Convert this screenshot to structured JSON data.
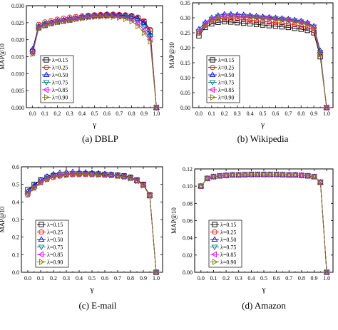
{
  "chart_data": [
    {
      "type": "line",
      "caption": "(a)  DBLP",
      "xlabel": "γ",
      "ylabel": "MAP@10",
      "xlim": [
        -0.05,
        1.05
      ],
      "ylim": [
        0.0,
        0.03
      ],
      "xticks": [
        "0.0",
        "0.1",
        "0.2",
        "0.3",
        "0.4",
        "0.5",
        "0.6",
        "0.7",
        "0.8",
        "0.9",
        "1.0"
      ],
      "yticks": [
        "0.000",
        "0.005",
        "0.010",
        "0.015",
        "0.020",
        "0.025",
        "0.030"
      ],
      "legend_position": "lower-left",
      "x": [
        0.0,
        0.05,
        0.1,
        0.15,
        0.2,
        0.25,
        0.3,
        0.35,
        0.4,
        0.45,
        0.5,
        0.55,
        0.6,
        0.65,
        0.7,
        0.75,
        0.8,
        0.85,
        0.9,
        0.95,
        1.0
      ],
      "series": [
        {
          "name": "λ=0.15",
          "marker": "square",
          "color": "#000000",
          "values": [
            0.0165,
            0.0235,
            0.0242,
            0.0248,
            0.0252,
            0.0255,
            0.0258,
            0.0262,
            0.0265,
            0.0268,
            0.027,
            0.0271,
            0.0272,
            0.0272,
            0.0271,
            0.027,
            0.0268,
            0.0263,
            0.0252,
            0.0225,
            0.0
          ]
        },
        {
          "name": "λ=0.25",
          "marker": "circle",
          "color": "#ff0000",
          "values": [
            0.0168,
            0.0245,
            0.0252,
            0.0256,
            0.026,
            0.0263,
            0.0266,
            0.0268,
            0.027,
            0.0272,
            0.0273,
            0.0274,
            0.0275,
            0.0275,
            0.0274,
            0.0273,
            0.0271,
            0.0266,
            0.0256,
            0.023,
            0.0
          ]
        },
        {
          "name": "λ=0.50",
          "marker": "triangle-up",
          "color": "#0000ff",
          "values": [
            0.0172,
            0.024,
            0.0247,
            0.0251,
            0.0255,
            0.0258,
            0.0261,
            0.0264,
            0.0267,
            0.0269,
            0.0271,
            0.0272,
            0.0273,
            0.0273,
            0.0272,
            0.0271,
            0.0269,
            0.0262,
            0.025,
            0.0215,
            0.0
          ]
        },
        {
          "name": "λ=0.75",
          "marker": "triangle-down",
          "color": "#008080",
          "values": [
            0.016,
            0.0238,
            0.0245,
            0.025,
            0.0254,
            0.0257,
            0.026,
            0.0263,
            0.0266,
            0.0268,
            0.027,
            0.0271,
            0.0271,
            0.0271,
            0.027,
            0.0268,
            0.0264,
            0.0255,
            0.0238,
            0.021,
            0.0
          ]
        },
        {
          "name": "λ=0.85",
          "marker": "triangle-left",
          "color": "#ff00ff",
          "values": [
            0.016,
            0.0236,
            0.0243,
            0.0249,
            0.0253,
            0.0256,
            0.0259,
            0.0262,
            0.0265,
            0.0267,
            0.0269,
            0.027,
            0.027,
            0.027,
            0.0268,
            0.0265,
            0.026,
            0.0248,
            0.0228,
            0.02,
            0.0
          ]
        },
        {
          "name": "λ=0.90",
          "marker": "triangle-right",
          "color": "#808000",
          "values": [
            0.0158,
            0.0234,
            0.0241,
            0.0247,
            0.0251,
            0.0254,
            0.0257,
            0.026,
            0.0263,
            0.0265,
            0.0267,
            0.0268,
            0.0268,
            0.0267,
            0.0265,
            0.0261,
            0.0254,
            0.024,
            0.022,
            0.0195,
            0.0
          ]
        }
      ]
    },
    {
      "type": "line",
      "caption": "(b)  Wikipedia",
      "xlabel": "γ",
      "ylabel": "MAP@10",
      "xlim": [
        -0.05,
        1.05
      ],
      "ylim": [
        0.0,
        0.35
      ],
      "xticks": [
        "0.0",
        "0.1",
        "0.2",
        "0.3",
        "0.4",
        "0.5",
        "0.6",
        "0.7",
        "0.8",
        "0.9",
        "1.0"
      ],
      "yticks": [
        "0.00",
        "0.05",
        "0.10",
        "0.15",
        "0.20",
        "0.25",
        "0.30",
        "0.35"
      ],
      "legend_position": "lower-left",
      "x": [
        0.0,
        0.05,
        0.1,
        0.15,
        0.2,
        0.25,
        0.3,
        0.35,
        0.4,
        0.45,
        0.5,
        0.55,
        0.6,
        0.65,
        0.7,
        0.75,
        0.8,
        0.85,
        0.9,
        0.95,
        1.0
      ],
      "series": [
        {
          "name": "λ=0.15",
          "marker": "square",
          "color": "#000000",
          "values": [
            0.24,
            0.268,
            0.28,
            0.285,
            0.287,
            0.286,
            0.284,
            0.282,
            0.28,
            0.278,
            0.276,
            0.274,
            0.272,
            0.27,
            0.268,
            0.265,
            0.262,
            0.258,
            0.25,
            0.17,
            0.0
          ]
        },
        {
          "name": "λ=0.25",
          "marker": "circle",
          "color": "#ff0000",
          "values": [
            0.25,
            0.275,
            0.29,
            0.296,
            0.298,
            0.297,
            0.296,
            0.294,
            0.292,
            0.29,
            0.288,
            0.286,
            0.284,
            0.282,
            0.28,
            0.277,
            0.273,
            0.268,
            0.258,
            0.18,
            0.0
          ]
        },
        {
          "name": "λ=0.50",
          "marker": "triangle-up",
          "color": "#0000ff",
          "values": [
            0.262,
            0.285,
            0.3,
            0.308,
            0.312,
            0.312,
            0.311,
            0.31,
            0.308,
            0.306,
            0.304,
            0.302,
            0.3,
            0.298,
            0.296,
            0.293,
            0.289,
            0.284,
            0.272,
            0.19,
            0.0
          ]
        },
        {
          "name": "λ=0.75",
          "marker": "triangle-down",
          "color": "#008080",
          "values": [
            0.255,
            0.28,
            0.296,
            0.304,
            0.307,
            0.308,
            0.307,
            0.306,
            0.305,
            0.303,
            0.301,
            0.3,
            0.298,
            0.296,
            0.294,
            0.291,
            0.287,
            0.281,
            0.27,
            0.185,
            0.0
          ]
        },
        {
          "name": "λ=0.85",
          "marker": "triangle-left",
          "color": "#ff00ff",
          "values": [
            0.252,
            0.278,
            0.294,
            0.302,
            0.305,
            0.306,
            0.305,
            0.304,
            0.303,
            0.301,
            0.299,
            0.298,
            0.296,
            0.294,
            0.292,
            0.289,
            0.285,
            0.279,
            0.268,
            0.182,
            0.0
          ]
        },
        {
          "name": "λ=0.90",
          "marker": "triangle-right",
          "color": "#808000",
          "values": [
            0.248,
            0.274,
            0.29,
            0.298,
            0.301,
            0.302,
            0.302,
            0.301,
            0.3,
            0.298,
            0.296,
            0.295,
            0.293,
            0.291,
            0.289,
            0.286,
            0.282,
            0.276,
            0.265,
            0.178,
            0.0
          ]
        }
      ]
    },
    {
      "type": "line",
      "caption": "(c)  E-mail",
      "xlabel": "γ",
      "ylabel": "MAP@10",
      "xlim": [
        -0.05,
        1.05
      ],
      "ylim": [
        0.0,
        0.6
      ],
      "xticks": [
        "0.0",
        "0.1",
        "0.2",
        "0.3",
        "0.4",
        "0.5",
        "0.6",
        "0.7",
        "0.8",
        "0.9",
        "1.0"
      ],
      "yticks": [
        "0.0",
        "0.1",
        "0.2",
        "0.3",
        "0.4",
        "0.5",
        "0.6"
      ],
      "legend_position": "lower-left",
      "x": [
        0.0,
        0.05,
        0.1,
        0.15,
        0.2,
        0.25,
        0.3,
        0.35,
        0.4,
        0.45,
        0.5,
        0.55,
        0.6,
        0.65,
        0.7,
        0.75,
        0.8,
        0.85,
        0.9,
        0.95,
        1.0
      ],
      "series": [
        {
          "name": "λ=0.15",
          "marker": "square",
          "color": "#000000",
          "values": [
            0.47,
            0.5,
            0.525,
            0.54,
            0.55,
            0.555,
            0.558,
            0.56,
            0.561,
            0.561,
            0.56,
            0.559,
            0.557,
            0.555,
            0.552,
            0.548,
            0.54,
            0.525,
            0.5,
            0.44,
            0.0
          ]
        },
        {
          "name": "λ=0.25",
          "marker": "circle",
          "color": "#ff0000",
          "values": [
            0.44,
            0.48,
            0.51,
            0.528,
            0.54,
            0.547,
            0.552,
            0.555,
            0.556,
            0.556,
            0.556,
            0.555,
            0.553,
            0.551,
            0.548,
            0.544,
            0.537,
            0.523,
            0.498,
            0.438,
            0.0
          ]
        },
        {
          "name": "λ=0.50",
          "marker": "triangle-up",
          "color": "#0000ff",
          "values": [
            0.46,
            0.495,
            0.525,
            0.545,
            0.558,
            0.566,
            0.57,
            0.571,
            0.57,
            0.568,
            0.566,
            0.563,
            0.56,
            0.556,
            0.551,
            0.545,
            0.536,
            0.52,
            0.495,
            0.435,
            0.0
          ]
        },
        {
          "name": "λ=0.75",
          "marker": "triangle-down",
          "color": "#008080",
          "values": [
            0.45,
            0.485,
            0.515,
            0.535,
            0.548,
            0.556,
            0.56,
            0.562,
            0.562,
            0.561,
            0.56,
            0.558,
            0.556,
            0.553,
            0.549,
            0.544,
            0.536,
            0.521,
            0.496,
            0.437,
            0.0
          ]
        },
        {
          "name": "λ=0.85",
          "marker": "triangle-left",
          "color": "#ff00ff",
          "values": [
            0.445,
            0.482,
            0.512,
            0.532,
            0.545,
            0.553,
            0.557,
            0.559,
            0.559,
            0.559,
            0.558,
            0.556,
            0.554,
            0.552,
            0.548,
            0.543,
            0.535,
            0.52,
            0.495,
            0.436,
            0.0
          ]
        },
        {
          "name": "λ=0.90",
          "marker": "triangle-right",
          "color": "#808000",
          "values": [
            0.442,
            0.478,
            0.508,
            0.528,
            0.541,
            0.549,
            0.553,
            0.556,
            0.557,
            0.557,
            0.556,
            0.555,
            0.553,
            0.551,
            0.547,
            0.542,
            0.534,
            0.519,
            0.494,
            0.435,
            0.0
          ]
        }
      ]
    },
    {
      "type": "line",
      "caption": "(d)  Amazon",
      "xlabel": "γ",
      "ylabel": "MAP@10",
      "xlim": [
        -0.05,
        1.05
      ],
      "ylim": [
        0.0,
        0.12
      ],
      "xticks": [
        "0.0",
        "0.1",
        "0.2",
        "0.3",
        "0.4",
        "0.5",
        "0.6",
        "0.7",
        "0.8",
        "0.9",
        "1.0"
      ],
      "yticks": [
        "0.00",
        "0.02",
        "0.04",
        "0.06",
        "0.08",
        "0.10",
        "0.12"
      ],
      "legend_position": "lower-left",
      "x": [
        0.0,
        0.05,
        0.1,
        0.15,
        0.2,
        0.25,
        0.3,
        0.35,
        0.4,
        0.45,
        0.5,
        0.55,
        0.6,
        0.65,
        0.7,
        0.75,
        0.8,
        0.85,
        0.9,
        0.95,
        1.0
      ],
      "series": [
        {
          "name": "λ=0.15",
          "marker": "square",
          "color": "#000000",
          "values": [
            0.1,
            0.109,
            0.111,
            0.112,
            0.1125,
            0.113,
            0.113,
            0.1133,
            0.1135,
            0.1135,
            0.1135,
            0.1135,
            0.1135,
            0.1133,
            0.113,
            0.113,
            0.1125,
            0.112,
            0.111,
            0.1045,
            0.0
          ]
        },
        {
          "name": "λ=0.25",
          "marker": "circle",
          "color": "#ff0000",
          "values": [
            0.1,
            0.109,
            0.111,
            0.112,
            0.1125,
            0.113,
            0.113,
            0.1133,
            0.1135,
            0.1135,
            0.1135,
            0.1135,
            0.1135,
            0.1133,
            0.113,
            0.113,
            0.1125,
            0.112,
            0.111,
            0.1045,
            0.0
          ]
        },
        {
          "name": "λ=0.50",
          "marker": "triangle-up",
          "color": "#0000ff",
          "values": [
            0.1,
            0.109,
            0.111,
            0.112,
            0.1125,
            0.113,
            0.113,
            0.1133,
            0.1135,
            0.1135,
            0.1135,
            0.1135,
            0.1135,
            0.1133,
            0.113,
            0.113,
            0.1125,
            0.112,
            0.111,
            0.1045,
            0.0
          ]
        },
        {
          "name": "λ=0.75",
          "marker": "triangle-down",
          "color": "#008080",
          "values": [
            0.1,
            0.109,
            0.111,
            0.112,
            0.1125,
            0.113,
            0.113,
            0.1133,
            0.1135,
            0.1135,
            0.1135,
            0.1135,
            0.1135,
            0.1133,
            0.113,
            0.113,
            0.1125,
            0.112,
            0.111,
            0.1045,
            0.0
          ]
        },
        {
          "name": "λ=0.85",
          "marker": "triangle-left",
          "color": "#ff00ff",
          "values": [
            0.1,
            0.109,
            0.111,
            0.112,
            0.1125,
            0.113,
            0.113,
            0.1133,
            0.1135,
            0.1135,
            0.1135,
            0.1135,
            0.1135,
            0.1133,
            0.113,
            0.113,
            0.1125,
            0.112,
            0.111,
            0.1045,
            0.0
          ]
        },
        {
          "name": "λ=0.90",
          "marker": "triangle-right",
          "color": "#808000",
          "values": [
            0.1,
            0.109,
            0.111,
            0.112,
            0.1125,
            0.113,
            0.113,
            0.1133,
            0.1135,
            0.1135,
            0.1135,
            0.1135,
            0.1135,
            0.1133,
            0.113,
            0.113,
            0.1125,
            0.112,
            0.111,
            0.1045,
            0.0
          ]
        }
      ]
    }
  ]
}
